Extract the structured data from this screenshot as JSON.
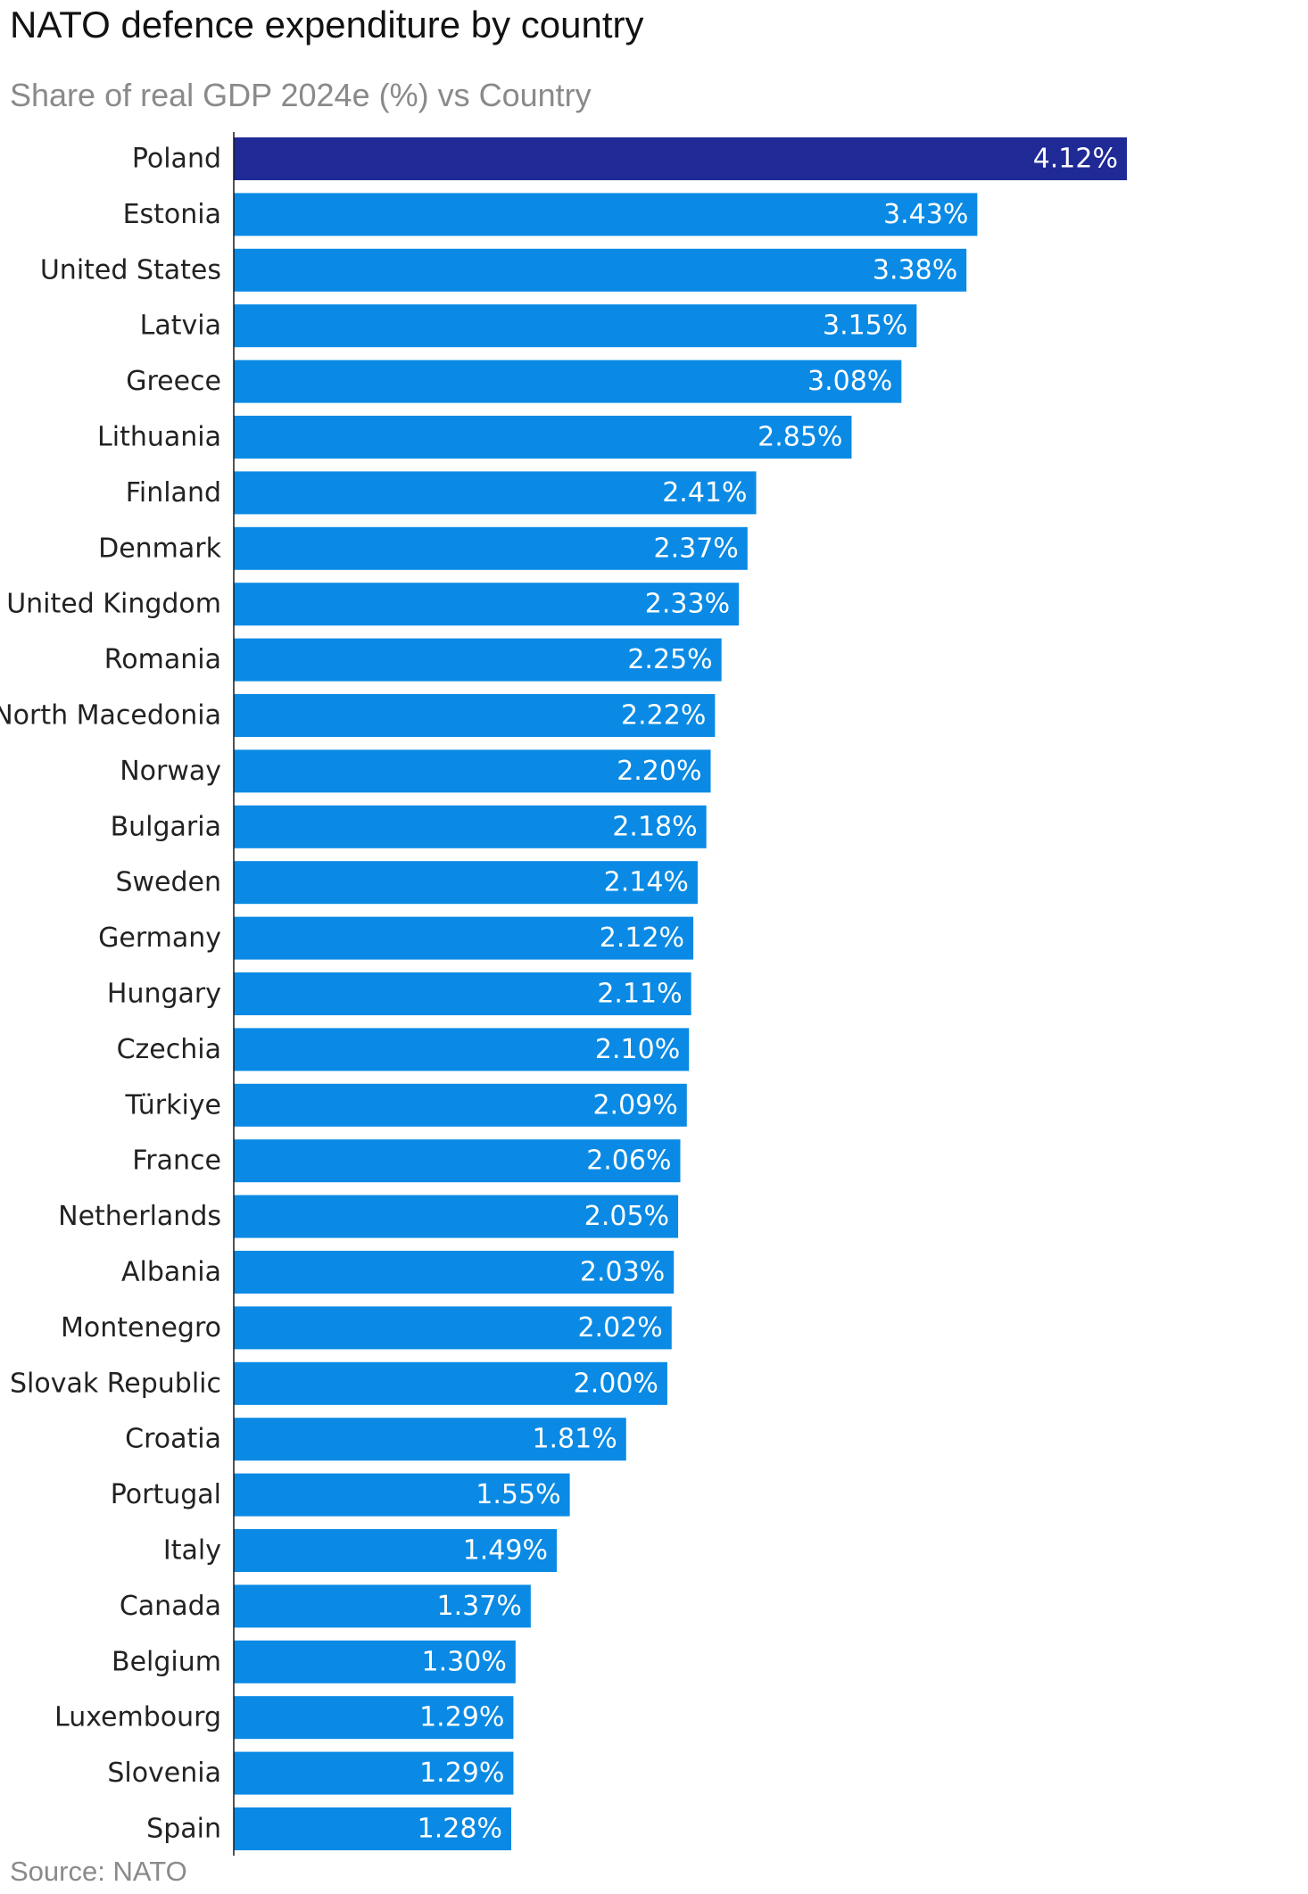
{
  "title": "NATO defence expenditure by country",
  "subtitle": "Share of real GDP 2024e (%) vs Country",
  "source": "Source: NATO",
  "colors": {
    "bar": "#0a8ae4",
    "highlight": "#1f2a96",
    "axis": "#1a1a1a"
  },
  "chart_data": {
    "type": "bar",
    "orientation": "horizontal",
    "title": "NATO defence expenditure by country",
    "subtitle": "Share of real GDP 2024e (%) vs Country",
    "value_suffix": "%",
    "highlight_category": "Poland",
    "categories": [
      "Poland",
      "Estonia",
      "United States",
      "Latvia",
      "Greece",
      "Lithuania",
      "Finland",
      "Denmark",
      "United Kingdom",
      "Romania",
      "North Macedonia",
      "Norway",
      "Bulgaria",
      "Sweden",
      "Germany",
      "Hungary",
      "Czechia",
      "Türkiye",
      "France",
      "Netherlands",
      "Albania",
      "Montenegro",
      "Slovak Republic",
      "Croatia",
      "Portugal",
      "Italy",
      "Canada",
      "Belgium",
      "Luxembourg",
      "Slovenia",
      "Spain"
    ],
    "values": [
      4.12,
      3.43,
      3.38,
      3.15,
      3.08,
      2.85,
      2.41,
      2.37,
      2.33,
      2.25,
      2.22,
      2.2,
      2.18,
      2.14,
      2.12,
      2.11,
      2.1,
      2.09,
      2.06,
      2.05,
      2.03,
      2.02,
      2.0,
      1.81,
      1.55,
      1.49,
      1.37,
      1.3,
      1.29,
      1.29,
      1.28
    ],
    "value_labels": [
      "4.12%",
      "3.43%",
      "3.38%",
      "3.15%",
      "3.08%",
      "2.85%",
      "2.41%",
      "2.37%",
      "2.33%",
      "2.25%",
      "2.22%",
      "2.20%",
      "2.18%",
      "2.14%",
      "2.12%",
      "2.11%",
      "2.10%",
      "2.09%",
      "2.06%",
      "2.05%",
      "2.03%",
      "2.02%",
      "2.00%",
      "1.81%",
      "1.55%",
      "1.49%",
      "1.37%",
      "1.30%",
      "1.29%",
      "1.29%",
      "1.28%"
    ],
    "xlim": [
      0,
      4.12
    ],
    "grid": false,
    "legend": "none"
  }
}
